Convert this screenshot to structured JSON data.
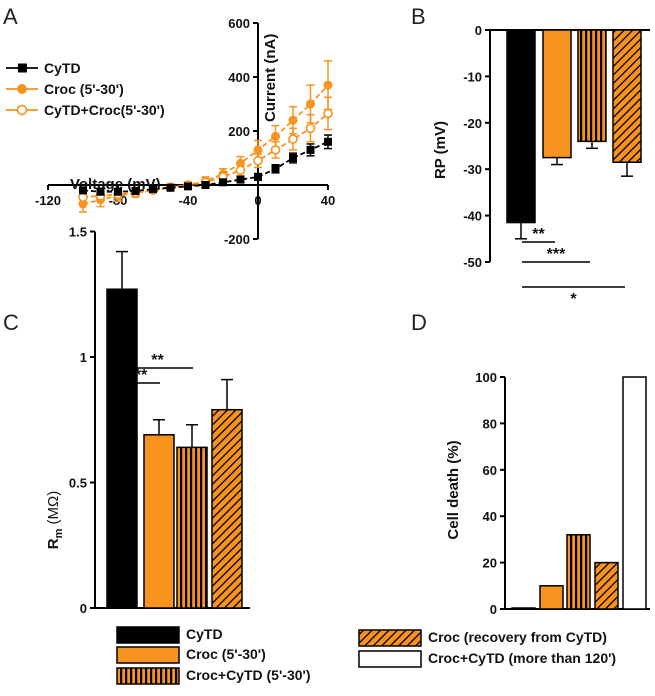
{
  "panels": {
    "a": "A",
    "b": "B",
    "c": "C",
    "d": "D"
  },
  "colors": {
    "black": "#000000",
    "orange": "#F7931E",
    "white": "#ffffff"
  },
  "chart_data": [
    {
      "id": "A",
      "type": "line",
      "xlabel": "Voltage (mV)",
      "ylabel": "Current (nA)",
      "xlim": [
        -120,
        40
      ],
      "ylim": [
        -200,
        600
      ],
      "xticks": [
        -120,
        -80,
        -40,
        0,
        40
      ],
      "yticks": [
        -200,
        200,
        400,
        600
      ],
      "xtick_labels": [
        "-120",
        "-80",
        "-40",
        "0",
        "40"
      ],
      "ytick_labels": [
        "-200",
        "200",
        "400",
        "600"
      ],
      "legend_position": "top-left",
      "x": [
        -100,
        -90,
        -80,
        -70,
        -60,
        -50,
        -40,
        -30,
        -20,
        -10,
        0,
        10,
        20,
        30,
        40
      ],
      "series": [
        {
          "name": "CyTD",
          "marker": "filled-square",
          "color": "#000000",
          "values": [
            -20,
            -25,
            -25,
            -22,
            -15,
            -10,
            -5,
            0,
            10,
            20,
            30,
            60,
            100,
            130,
            160
          ],
          "errors": [
            5,
            5,
            5,
            5,
            5,
            5,
            5,
            5,
            8,
            10,
            12,
            15,
            18,
            22,
            25
          ]
        },
        {
          "name": "Croc (5'-30')",
          "marker": "filled-circle",
          "color": "#F7931E",
          "values": [
            -70,
            -55,
            -40,
            -30,
            -20,
            -10,
            0,
            15,
            40,
            80,
            130,
            180,
            240,
            300,
            370
          ],
          "errors": [
            30,
            25,
            20,
            15,
            10,
            10,
            10,
            15,
            20,
            25,
            35,
            40,
            50,
            70,
            90
          ]
        },
        {
          "name": "CyTD+Croc(5'-30')",
          "marker": "open-circle",
          "color": "#F7931E",
          "values": [
            -45,
            -40,
            -35,
            -28,
            -18,
            -8,
            0,
            10,
            30,
            55,
            90,
            130,
            170,
            210,
            265
          ],
          "errors": [
            20,
            18,
            15,
            12,
            10,
            8,
            8,
            10,
            15,
            20,
            25,
            30,
            40,
            50,
            60
          ]
        }
      ]
    },
    {
      "id": "B",
      "type": "bar",
      "ylabel": "RP (mV)",
      "ylim": [
        -50,
        0
      ],
      "yticks": [
        0,
        -10,
        -20,
        -30,
        -40,
        -50
      ],
      "ytick_labels": [
        "0",
        "-10",
        "-20",
        "-30",
        "-40",
        "-50"
      ],
      "categories": [
        "CyTD",
        "Croc (5'-30')",
        "Croc+CyTD (5'-30')",
        "Croc (recovery from CyTD)"
      ],
      "values": [
        -41.5,
        -27.5,
        -24,
        -28.5
      ],
      "errors": [
        3.5,
        1.5,
        1.5,
        3
      ],
      "significance": [
        "**",
        "***",
        "*"
      ]
    },
    {
      "id": "C",
      "type": "bar",
      "ylabel_main": "R",
      "ylabel_sub": "m",
      "ylabel_unit": " (MΩ)",
      "ylim": [
        0,
        1.5
      ],
      "yticks": [
        0,
        0.5,
        1,
        1.5
      ],
      "ytick_labels": [
        "0",
        "0.5",
        "1",
        "1.5"
      ],
      "categories": [
        "CyTD",
        "Croc (5'-30')",
        "Croc+CyTD (5'-30')",
        "Croc (recovery from CyTD)"
      ],
      "values": [
        1.27,
        0.69,
        0.64,
        0.79
      ],
      "errors": [
        0.15,
        0.06,
        0.09,
        0.12
      ],
      "significance": [
        "**",
        "**"
      ]
    },
    {
      "id": "D",
      "type": "bar",
      "ylabel": "Cell death (%)",
      "ylim": [
        0,
        100
      ],
      "yticks": [
        0,
        20,
        40,
        60,
        80,
        100
      ],
      "ytick_labels": [
        "0",
        "20",
        "40",
        "60",
        "80",
        "100"
      ],
      "categories": [
        "CyTD",
        "Croc (5'-30')",
        "Croc+CyTD (5'-30')",
        "Croc (recovery from CyTD)",
        "Croc+CyTD(more than 120')"
      ],
      "values": [
        0,
        10,
        32,
        20,
        100
      ]
    }
  ],
  "bar_legend": [
    {
      "label": "CyTD",
      "style": "black"
    },
    {
      "label": "Croc (5'-30')",
      "style": "orange"
    },
    {
      "label": "Croc+CyTD (5'-30')",
      "style": "vstripe"
    },
    {
      "label": "Croc (recovery from CyTD)",
      "style": "hatch"
    },
    {
      "label": "Croc+CyTD (more than 120')",
      "style": "white"
    }
  ]
}
